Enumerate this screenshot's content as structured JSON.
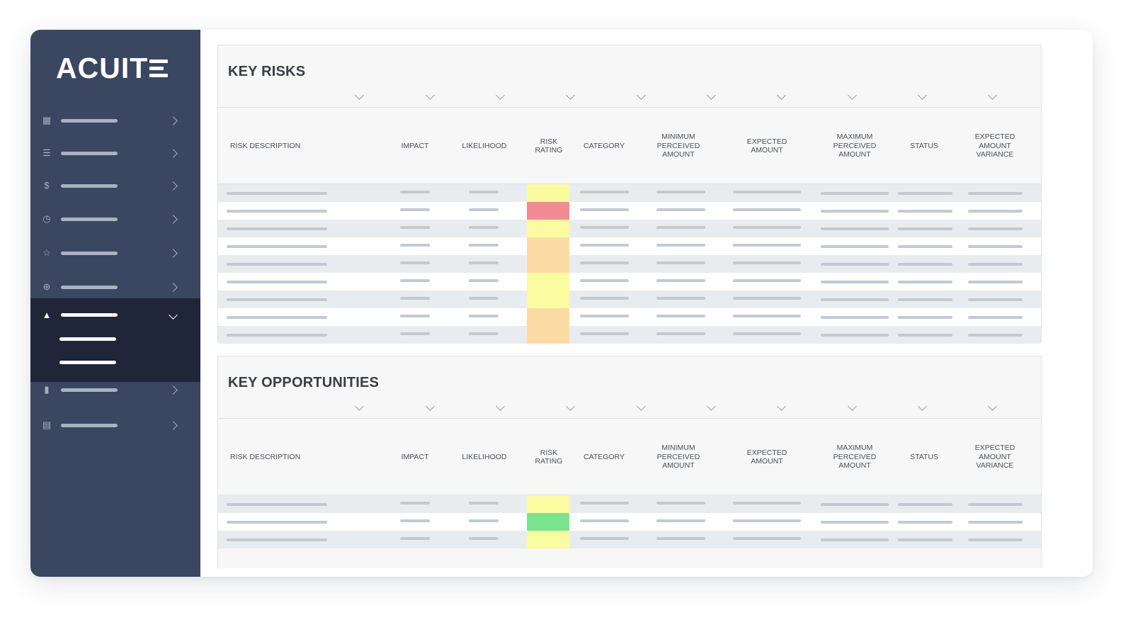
{
  "brand": {
    "logo_text": "ACUIT",
    "colors": {
      "sidebar": "#3b4760",
      "sidebar_active": "#1e2638",
      "rating_yellow": "#fbfba0",
      "rating_red": "#f28b95",
      "rating_orange": "#fcdca4",
      "rating_green": "#7ce38f"
    }
  },
  "sidebar": {
    "items": [
      {
        "icon": "dashboard-icon",
        "glyph": "▦",
        "state": "collapsed"
      },
      {
        "icon": "list-icon",
        "glyph": "☰",
        "state": "collapsed"
      },
      {
        "icon": "dollar-icon",
        "glyph": "$",
        "state": "collapsed"
      },
      {
        "icon": "clock-icon",
        "glyph": "◷",
        "state": "collapsed"
      },
      {
        "icon": "star-icon",
        "glyph": "☆",
        "state": "collapsed"
      },
      {
        "icon": "globe-icon",
        "glyph": "⊕",
        "state": "collapsed"
      },
      {
        "icon": "warning-icon",
        "glyph": "▲",
        "state": "expanded",
        "subitems": 2
      },
      {
        "icon": "file-icon",
        "glyph": "▮",
        "state": "collapsed"
      },
      {
        "icon": "document-icon",
        "glyph": "▤",
        "state": "collapsed"
      }
    ]
  },
  "risks": {
    "title": "KEY RISKS",
    "columns": [
      "RISK DESCRIPTION",
      "IMPACT",
      "LIKELIHOOD",
      "RISK\nRATING",
      "CATEGORY",
      "MINIMUM\nPERCEIVED\nAMOUNT",
      "EXPECTED\nAMOUNT",
      "MAXIMUM\nPERCEIVED\nAMOUNT",
      "STATUS",
      "EXPECTED\nAMOUNT\nVARIANCE"
    ],
    "ratings": [
      "yellow",
      "red",
      "yellow",
      "orange",
      "orange",
      "yellow",
      "yellow",
      "orange",
      "orange"
    ]
  },
  "opportunities": {
    "title": "KEY OPPORTUNITIES",
    "columns": [
      "RISK DESCRIPTION",
      "IMPACT",
      "LIKELIHOOD",
      "RISK\nRATING",
      "CATEGORY",
      "MINIMUM\nPERCEIVED\nAMOUNT",
      "EXPECTED\nAMOUNT",
      "MAXIMUM\nPERCEIVED\nAMOUNT",
      "STATUS",
      "EXPECTED\nAMOUNT\nVARIANCE"
    ],
    "ratings": [
      "yellow",
      "green",
      "yellow"
    ]
  }
}
